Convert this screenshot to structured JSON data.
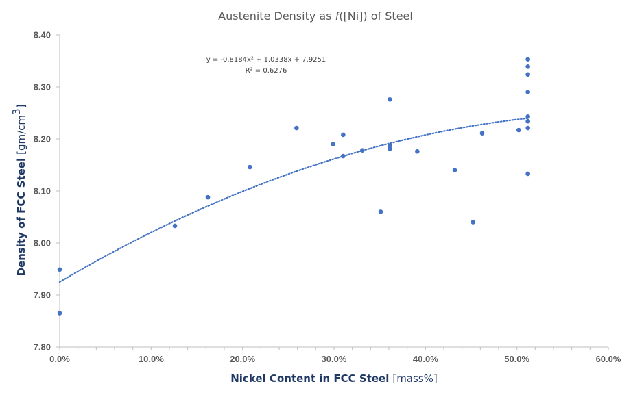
{
  "chart_data": {
    "type": "scatter",
    "title_pre": "Austenite Density as ",
    "title_func": "f",
    "title_post": "([Ni]) of Steel",
    "xlabel_bold": "Nickel Content in FCC Steel",
    "xlabel_unit": "[mass%]",
    "ylabel_bold": "Density of FCC Steel",
    "ylabel_unit": "[gm/cm",
    "ylabel_sup": "3",
    "ylabel_close": "]",
    "xlim": [
      0,
      0.6
    ],
    "ylim": [
      7.8,
      8.4
    ],
    "x_ticks": [
      0,
      0.1,
      0.2,
      0.3,
      0.4,
      0.5,
      0.6
    ],
    "x_tick_labels": [
      "0.0%",
      "10.0%",
      "20.0%",
      "30.0%",
      "40.0%",
      "50.0%",
      "60.0%"
    ],
    "y_ticks": [
      7.8,
      7.9,
      8.0,
      8.1,
      8.2,
      8.3,
      8.4
    ],
    "y_tick_labels": [
      "7.80",
      "7.90",
      "8.00",
      "8.10",
      "8.20",
      "8.30",
      "8.40"
    ],
    "grid": false,
    "point_color": "#4472C4",
    "trendline_color": "#4472C4",
    "trendline": {
      "type": "polynomial",
      "coefficients": [
        -0.8184,
        1.0338,
        7.9251
      ],
      "equation": "y = -0.8184x² + 1.0338x + 7.9251",
      "r_squared": "R² = 0.6276"
    },
    "points": [
      {
        "x": 0.0,
        "y": 7.949
      },
      {
        "x": 0.0,
        "y": 7.865
      },
      {
        "x": 0.126,
        "y": 8.033
      },
      {
        "x": 0.162,
        "y": 8.088
      },
      {
        "x": 0.208,
        "y": 8.146
      },
      {
        "x": 0.259,
        "y": 8.221
      },
      {
        "x": 0.299,
        "y": 8.19
      },
      {
        "x": 0.31,
        "y": 8.208
      },
      {
        "x": 0.31,
        "y": 8.167
      },
      {
        "x": 0.331,
        "y": 8.178
      },
      {
        "x": 0.351,
        "y": 8.06
      },
      {
        "x": 0.361,
        "y": 8.276
      },
      {
        "x": 0.361,
        "y": 8.187
      },
      {
        "x": 0.361,
        "y": 8.181
      },
      {
        "x": 0.391,
        "y": 8.176
      },
      {
        "x": 0.432,
        "y": 8.14
      },
      {
        "x": 0.452,
        "y": 8.04
      },
      {
        "x": 0.462,
        "y": 8.211
      },
      {
        "x": 0.502,
        "y": 8.217
      },
      {
        "x": 0.512,
        "y": 8.353
      },
      {
        "x": 0.512,
        "y": 8.339
      },
      {
        "x": 0.512,
        "y": 8.324
      },
      {
        "x": 0.512,
        "y": 8.29
      },
      {
        "x": 0.512,
        "y": 8.243
      },
      {
        "x": 0.512,
        "y": 8.234
      },
      {
        "x": 0.512,
        "y": 8.221
      },
      {
        "x": 0.512,
        "y": 8.133
      }
    ]
  }
}
